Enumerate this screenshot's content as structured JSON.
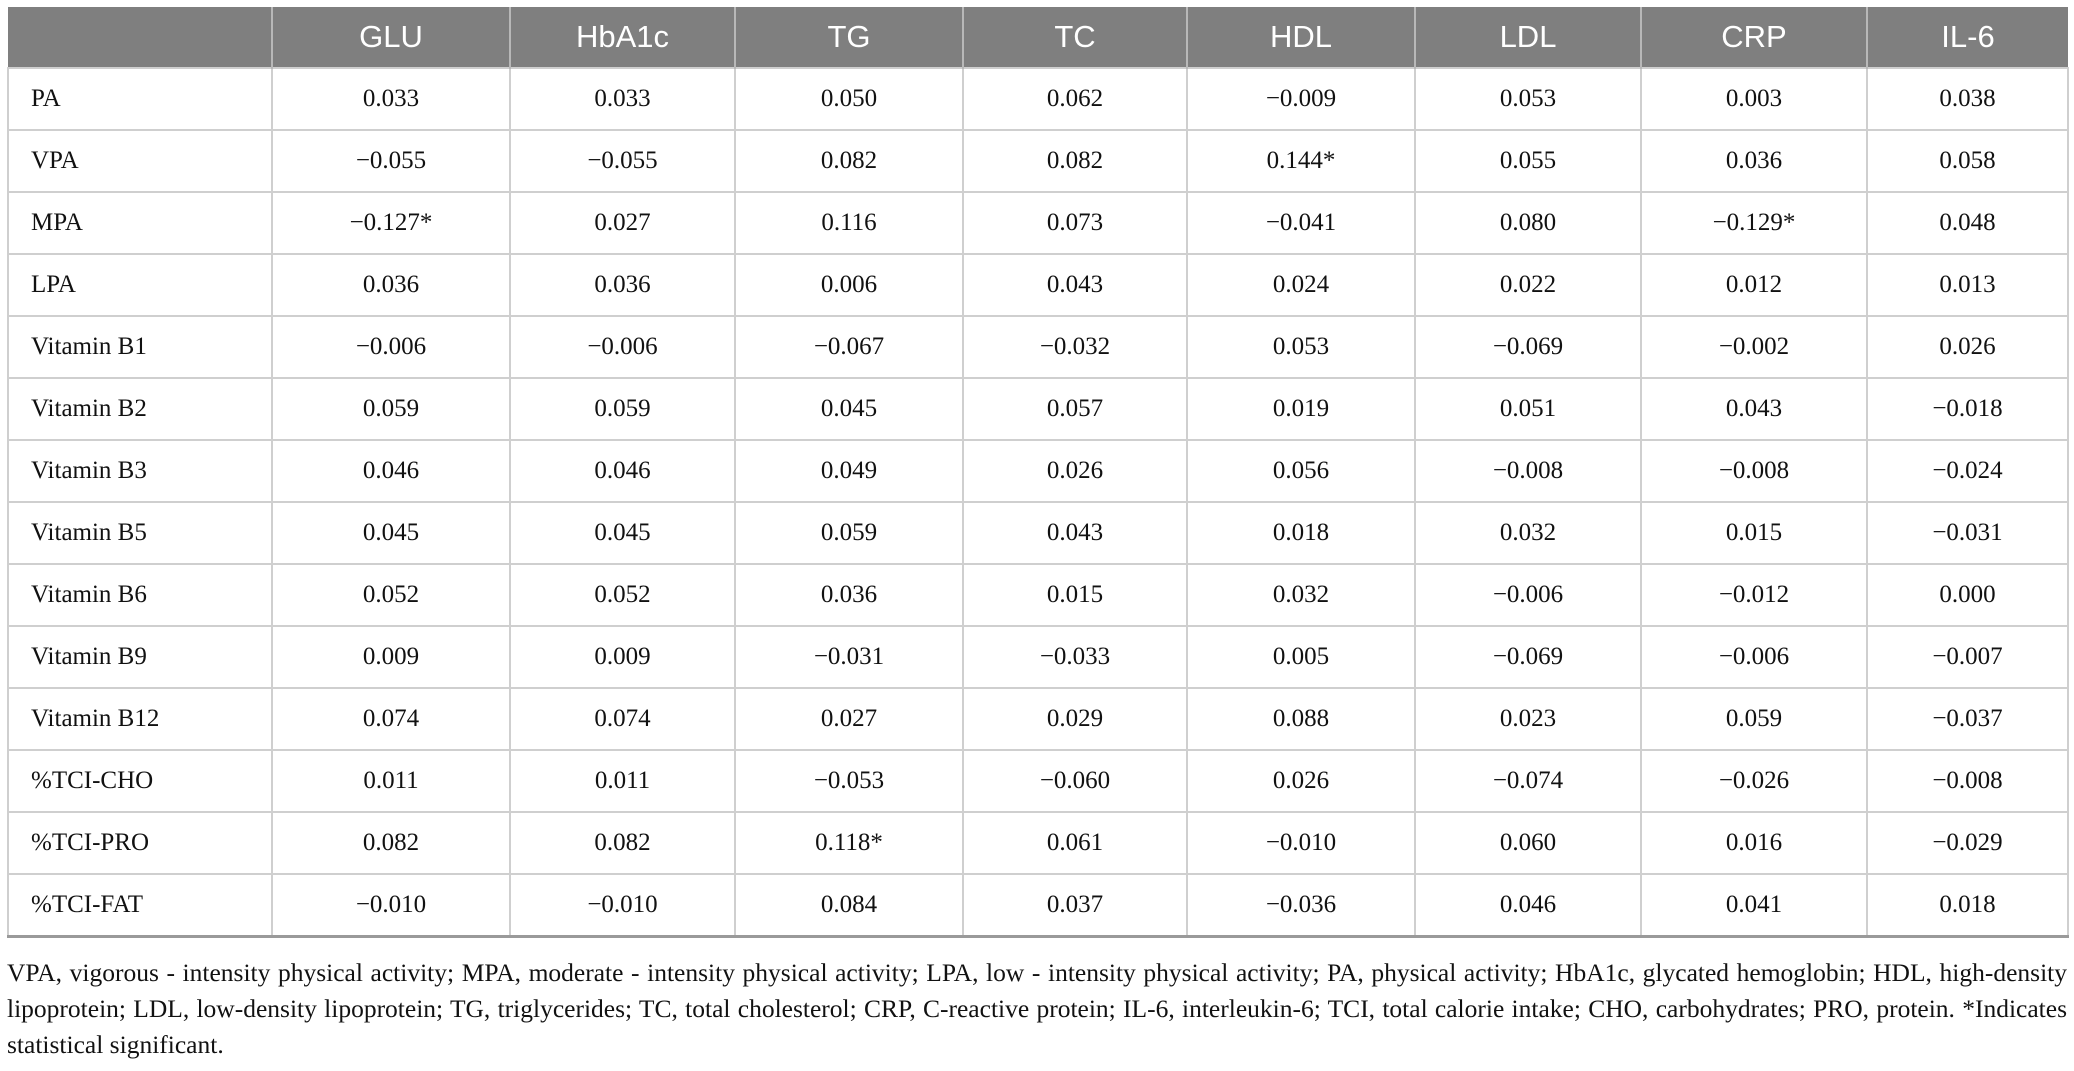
{
  "table": {
    "header": [
      "",
      "GLU",
      "HbA1c",
      "TG",
      "TC",
      "HDL",
      "LDL",
      "CRP",
      "IL-6"
    ],
    "rows": [
      [
        "PA",
        "0.033",
        "0.033",
        "0.050",
        "0.062",
        "−0.009",
        "0.053",
        "0.003",
        "0.038"
      ],
      [
        "VPA",
        "−0.055",
        "−0.055",
        "0.082",
        "0.082",
        "0.144*",
        "0.055",
        "0.036",
        "0.058"
      ],
      [
        "MPA",
        "−0.127*",
        "0.027",
        "0.116",
        "0.073",
        "−0.041",
        "0.080",
        "−0.129*",
        "0.048"
      ],
      [
        "LPA",
        "0.036",
        "0.036",
        "0.006",
        "0.043",
        "0.024",
        "0.022",
        "0.012",
        "0.013"
      ],
      [
        "Vitamin B1",
        "−0.006",
        "−0.006",
        "−0.067",
        "−0.032",
        "0.053",
        "−0.069",
        "−0.002",
        "0.026"
      ],
      [
        "Vitamin B2",
        "0.059",
        "0.059",
        "0.045",
        "0.057",
        "0.019",
        "0.051",
        "0.043",
        "−0.018"
      ],
      [
        "Vitamin B3",
        "0.046",
        "0.046",
        "0.049",
        "0.026",
        "0.056",
        "−0.008",
        "−0.008",
        "−0.024"
      ],
      [
        "Vitamin B5",
        "0.045",
        "0.045",
        "0.059",
        "0.043",
        "0.018",
        "0.032",
        "0.015",
        "−0.031"
      ],
      [
        "Vitamin B6",
        "0.052",
        "0.052",
        "0.036",
        "0.015",
        "0.032",
        "−0.006",
        "−0.012",
        "0.000"
      ],
      [
        "Vitamin B9",
        "0.009",
        "0.009",
        "−0.031",
        "−0.033",
        "0.005",
        "−0.069",
        "−0.006",
        "−0.007"
      ],
      [
        "Vitamin B12",
        "0.074",
        "0.074",
        "0.027",
        "0.029",
        "0.088",
        "0.023",
        "0.059",
        "−0.037"
      ],
      [
        "%TCI-CHO",
        "0.011",
        "0.011",
        "−0.053",
        "−0.060",
        "0.026",
        "−0.074",
        "−0.026",
        "−0.008"
      ],
      [
        "%TCI-PRO",
        "0.082",
        "0.082",
        "0.118*",
        "0.061",
        "−0.010",
        "0.060",
        "0.016",
        "−0.029"
      ],
      [
        "%TCI-FAT",
        "−0.010",
        "−0.010",
        "0.084",
        "0.037",
        "−0.036",
        "0.046",
        "0.041",
        "0.018"
      ]
    ]
  },
  "footnote": "VPA, vigorous - intensity physical activity; MPA, moderate - intensity physical activity; LPA, low - intensity physical activity; PA, physical activity; HbA1c, glycated hemoglobin; HDL, high-density lipoprotein; LDL, low-density lipoprotein; TG, triglycerides; TC, total cholesterol; CRP, C-reactive protein; IL-6, interleukin-6; TCI, total calorie intake; CHO, carbohydrates; PRO, protein. *Indicates statistical significant."
}
